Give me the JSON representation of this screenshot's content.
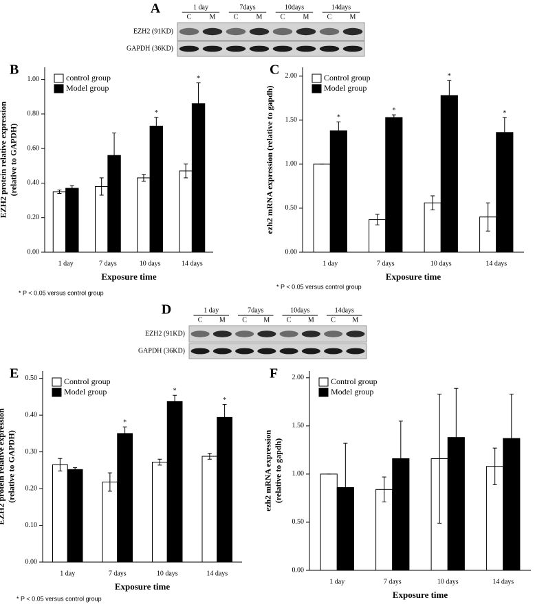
{
  "blots": [
    {
      "panel": "A",
      "groups": [
        "1 day",
        "7days",
        "10days",
        "14days"
      ],
      "lanes": [
        "C",
        "M"
      ],
      "rows": [
        "EZH2 (91KD)",
        "GAPDH (36KD)"
      ]
    },
    {
      "panel": "D",
      "groups": [
        "1 day",
        "7days",
        "10days",
        "14days"
      ],
      "lanes": [
        "C",
        "M"
      ],
      "rows": [
        "EZH2 (91KD)",
        "GAPDH (36KD)"
      ]
    }
  ],
  "chart_data": [
    {
      "type": "bar",
      "panel": "B",
      "y_label": [
        "EZH2 protein relative expression",
        "(relative to GAPDH)"
      ],
      "x_label": "Exposure time",
      "categories": [
        "1 day",
        "7 days",
        "10 days",
        "14 days"
      ],
      "series": [
        {
          "name": "control group",
          "color": "#ffffff",
          "values": [
            0.35,
            0.38,
            0.43,
            0.47
          ],
          "errors": [
            0.01,
            0.05,
            0.02,
            0.04
          ],
          "significance": [
            null,
            null,
            null,
            null
          ]
        },
        {
          "name": "Model group",
          "color": "#000000",
          "values": [
            0.37,
            0.56,
            0.73,
            0.86
          ],
          "errors": [
            0.015,
            0.13,
            0.05,
            0.12
          ],
          "significance": [
            null,
            null,
            "*",
            "*"
          ]
        }
      ],
      "ylim": [
        0,
        1.07
      ],
      "yticks": [
        {
          "value": 0,
          "label": "0.00"
        },
        {
          "value": 0.2,
          "label": "0.20"
        },
        {
          "value": 0.4,
          "label": "0.40"
        },
        {
          "value": 0.6,
          "label": "0.60"
        },
        {
          "value": 0.8,
          "label": "0.80"
        },
        {
          "value": 1.0,
          "label": "1.00"
        }
      ],
      "legend": "upper left",
      "footnote": "* P < 0.05  versus control group"
    },
    {
      "type": "bar",
      "panel": "C",
      "y_label": [
        "ezh2 mRNA expression (relative to gapdh)"
      ],
      "x_label": "Exposure time",
      "categories": [
        "1 day",
        "7 days",
        "10 days",
        "14 days"
      ],
      "series": [
        {
          "name": "Control group",
          "color": "#ffffff",
          "values": [
            1.0,
            0.37,
            0.56,
            0.4
          ],
          "errors": [
            0,
            0.06,
            0.08,
            0.16
          ],
          "significance": [
            null,
            null,
            null,
            null
          ]
        },
        {
          "name": "Model group",
          "color": "#000000",
          "values": [
            1.38,
            1.53,
            1.78,
            1.36
          ],
          "errors": [
            0.1,
            0.03,
            0.17,
            0.17
          ],
          "significance": [
            "*",
            "*",
            "*",
            "*"
          ]
        }
      ],
      "ylim": [
        0,
        2.1
      ],
      "yticks": [
        {
          "value": 0,
          "label": "0.00"
        },
        {
          "value": 0.5,
          "label": "0.50"
        },
        {
          "value": 1.0,
          "label": "1.00"
        },
        {
          "value": 1.5,
          "label": "1.50"
        },
        {
          "value": 2.0,
          "label": "2.00"
        }
      ],
      "legend": "upper left",
      "footnote": "* P < 0.05  versus control group"
    },
    {
      "type": "bar",
      "panel": "E",
      "y_label": [
        "EZH2 protein relative expression",
        "(relative to GAPDH)"
      ],
      "x_label": "Exposure time",
      "categories": [
        "1 day",
        "7 days",
        "10 days",
        "14 days"
      ],
      "series": [
        {
          "name": "Control group",
          "color": "#ffffff",
          "values": [
            0.265,
            0.218,
            0.272,
            0.288
          ],
          "errors": [
            0.017,
            0.025,
            0.008,
            0.008
          ],
          "significance": [
            null,
            null,
            null,
            null
          ]
        },
        {
          "name": "Model group",
          "color": "#000000",
          "values": [
            0.252,
            0.35,
            0.437,
            0.394
          ],
          "errors": [
            0.005,
            0.018,
            0.017,
            0.035
          ],
          "significance": [
            null,
            "*",
            "*",
            "*"
          ]
        }
      ],
      "ylim": [
        0,
        0.52
      ],
      "yticks": [
        {
          "value": 0,
          "label": "0.00"
        },
        {
          "value": 0.1,
          "label": "0.10"
        },
        {
          "value": 0.2,
          "label": "0.20"
        },
        {
          "value": 0.3,
          "label": "0.30"
        },
        {
          "value": 0.4,
          "label": "0.40"
        },
        {
          "value": 0.5,
          "label": "0.50"
        }
      ],
      "legend": "upper left",
      "footnote": "* P < 0.05  versus control group"
    },
    {
      "type": "bar",
      "panel": "F",
      "y_label": [
        "ezh2 mRNA expression",
        "(relative to gapdh)"
      ],
      "x_label": "Exposure time",
      "categories": [
        "1 day",
        "7 days",
        "10 days",
        "14 days"
      ],
      "series": [
        {
          "name": "Control group",
          "color": "#ffffff",
          "values": [
            1.0,
            0.84,
            1.16,
            1.08
          ],
          "errors": [
            0,
            0.13,
            0.67,
            0.19
          ],
          "significance": [
            null,
            null,
            null,
            null
          ]
        },
        {
          "name": "Model group",
          "color": "#000000",
          "values": [
            0.86,
            1.16,
            1.38,
            1.37
          ],
          "errors": [
            0.46,
            0.39,
            0.51,
            0.46
          ],
          "significance": [
            null,
            null,
            null,
            null
          ]
        }
      ],
      "ylim": [
        0,
        2.07
      ],
      "yticks": [
        {
          "value": 0,
          "label": "0.00"
        },
        {
          "value": 0.5,
          "label": "0.50"
        },
        {
          "value": 1.0,
          "label": "1.00"
        },
        {
          "value": 1.5,
          "label": "1.50"
        },
        {
          "value": 2.0,
          "label": "2.00"
        }
      ],
      "legend": "upper left"
    }
  ]
}
